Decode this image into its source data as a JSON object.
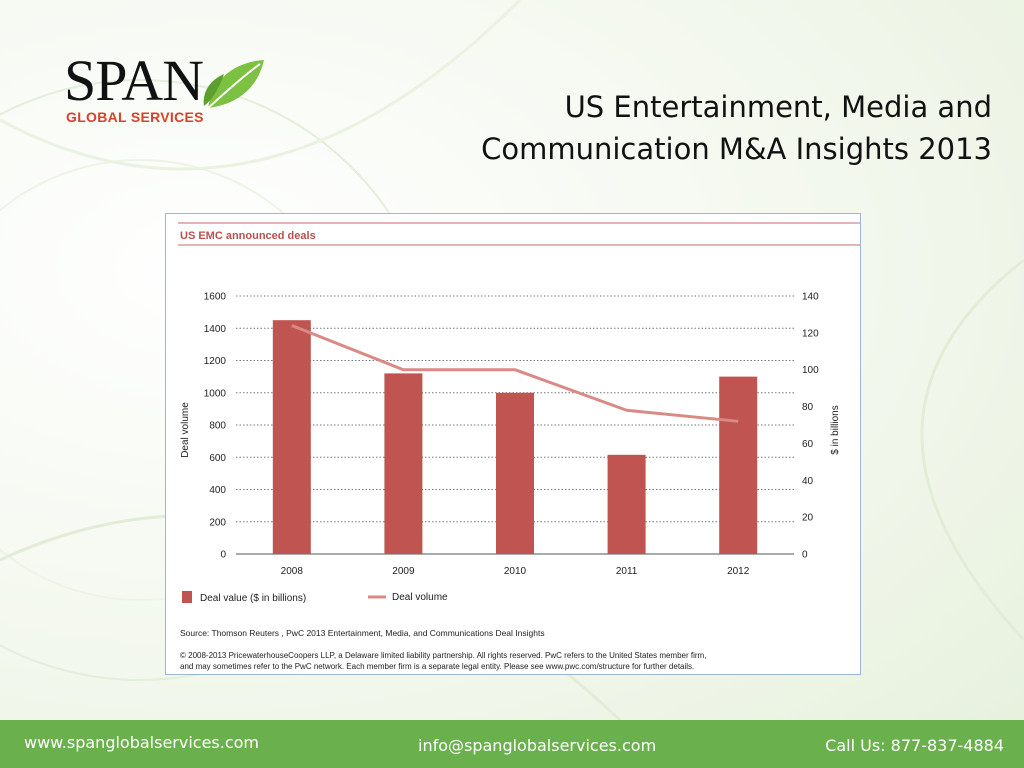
{
  "logo": {
    "wordmark": "SPAN",
    "subtitle": "GLOBAL SERVICES",
    "leaf_color": "#7cc142",
    "subtitle_color": "#d8412a"
  },
  "title": {
    "line1": "US Entertainment, Media and",
    "line2": "Communication M&A Insights 2013"
  },
  "figure": {
    "heading": "US EMC announced deals",
    "source": "Source: Thomson Reuters , PwC 2013 Entertainment, Media, and Communications Deal Insights",
    "copyright_line1": "© 2008-2013 PricewaterhouseCoopers LLP, a Delaware limited liability partnership. All rights reserved. PwC refers to the United States member firm,",
    "copyright_line2": "and may sometimes refer to the PwC network. Each member firm is a separate legal entity. Please see www.pwc.com/structure for further details."
  },
  "chart_data": {
    "type": "bar",
    "title": "US EMC announced deals",
    "categories": [
      "2008",
      "2009",
      "2010",
      "2011",
      "2012"
    ],
    "ylabel_left": "Deal volume",
    "ylabel_right": "$ in billions",
    "ylim_left": [
      0,
      1600
    ],
    "ylim_right": [
      0,
      140
    ],
    "yticks_left": [
      "0",
      "200",
      "400",
      "600",
      "800",
      "1000",
      "1200",
      "1400",
      "1600"
    ],
    "yticks_right": [
      "0",
      "20",
      "40",
      "60",
      "80",
      "100",
      "120",
      "140"
    ],
    "grid": "dotted horizontal",
    "legend_position": "bottom",
    "series": [
      {
        "name": "Deal value ($ in billions)",
        "kind": "bar",
        "axis": "left",
        "color": "#bf5450",
        "values": [
          1450,
          1120,
          1000,
          615,
          1100
        ]
      },
      {
        "name": "Deal volume",
        "kind": "line",
        "axis": "right",
        "color": "#d98a85",
        "values": [
          124,
          100,
          100,
          78,
          72
        ]
      }
    ]
  },
  "footer": {
    "website": "www.spanglobalservices.com",
    "email": "info@spanglobalservices.com",
    "phone": "Call Us: 877-837-4884",
    "bg_color": "#6ab04c"
  }
}
